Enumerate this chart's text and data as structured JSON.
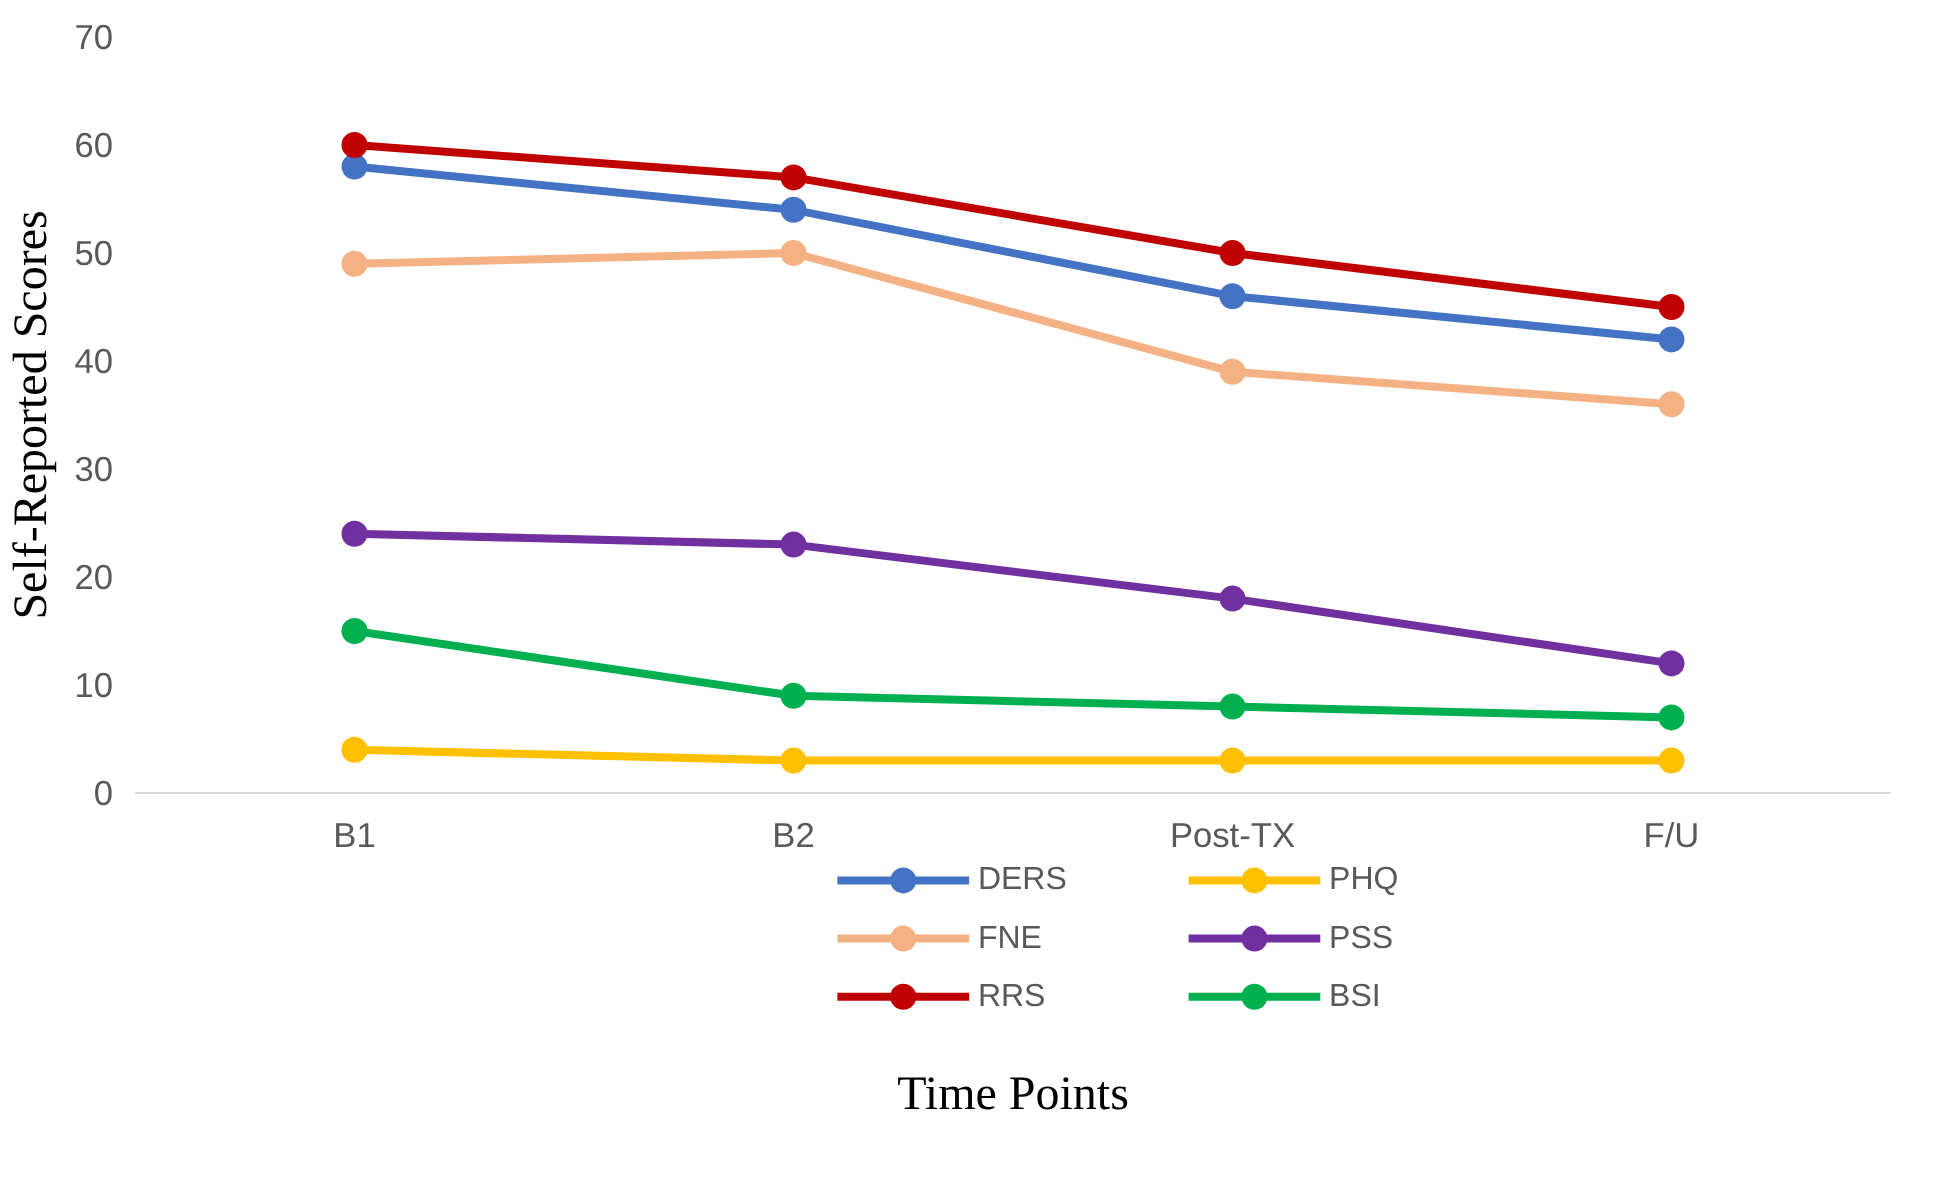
{
  "chart_data": {
    "type": "line",
    "xlabel": "Time Points",
    "ylabel": "Self-Reported Scores",
    "categories": [
      "B1",
      "B2",
      "Post-TX",
      "F/U"
    ],
    "series": [
      {
        "name": "DERS",
        "color": "#4472c4",
        "values": [
          58,
          54,
          46,
          42
        ]
      },
      {
        "name": "PHQ",
        "color": "#ffc000",
        "values": [
          4,
          3,
          3,
          3
        ]
      },
      {
        "name": "FNE",
        "color": "#f4b183",
        "values": [
          49,
          50,
          39,
          36
        ]
      },
      {
        "name": "PSS",
        "color": "#7030a0",
        "values": [
          24,
          23,
          18,
          12
        ]
      },
      {
        "name": "RRS",
        "color": "#c00000",
        "values": [
          60,
          57,
          50,
          45
        ]
      },
      {
        "name": "BSI",
        "color": "#00b050",
        "values": [
          15,
          9,
          8,
          7
        ]
      }
    ],
    "ylim": [
      0,
      70
    ],
    "yticks": [
      0,
      10,
      20,
      30,
      40,
      50,
      60,
      70
    ],
    "grid": false,
    "legend": "bottom",
    "marker": "circle",
    "line_style": "solid"
  }
}
